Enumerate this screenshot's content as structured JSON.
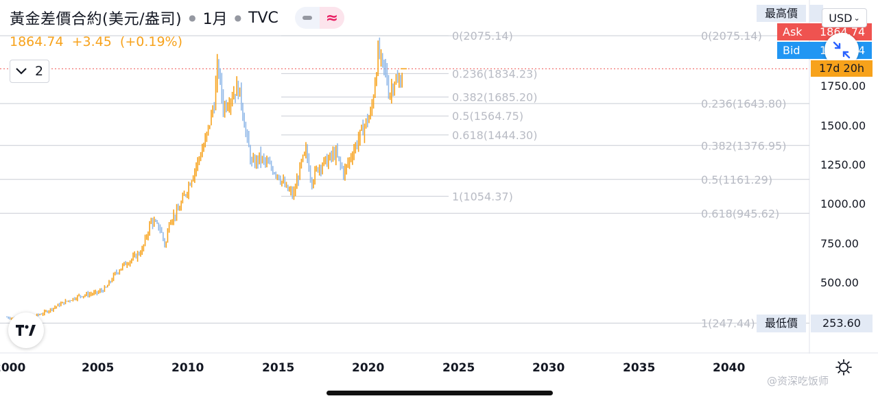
{
  "header": {
    "title": "黃金差價合約(美元/盎司)",
    "interval": "1月",
    "exchange": "TVC",
    "toggle_icon_a": "line-icon",
    "toggle_icon_b": "wave-icon"
  },
  "quote": {
    "last": "1864.74",
    "change": "+3.45",
    "change_pct": "(+0.19%)"
  },
  "collapse": {
    "count": "2"
  },
  "currency": {
    "label": "USD"
  },
  "price_tags": {
    "high_label": "最高價",
    "ask_label": "Ask",
    "ask_value": "1864.74",
    "bid_label": "Bid",
    "bid_value": "1864.14",
    "countdown": "17d 20h",
    "low_label": "最低價",
    "low_value": "253.60"
  },
  "colors": {
    "up": "#f7a21b",
    "down": "#90b8e8",
    "ask": "#ef5350",
    "bid": "#2196f3",
    "fib_line": "#c8ccd4",
    "fib_text": "#b8bbc4",
    "last_price_line": "#ef5350"
  },
  "watermark": "@资深吃饭师",
  "chart_data": {
    "type": "candlestick",
    "title": "黃金差價合約(美元/盎司)",
    "interval": "1M",
    "ylim": [
      247.44,
      2250
    ],
    "xlim": [
      2000,
      2042
    ],
    "y_ticks": [
      "500.00",
      "750.00",
      "1000.00",
      "1250.00",
      "1500.00",
      "1750.00"
    ],
    "x_ticks": [
      "2000",
      "2005",
      "2010",
      "2015",
      "2020",
      "2025",
      "2030",
      "2035",
      "2040"
    ],
    "last_price": 1864.74,
    "high": 2075.14,
    "low": 253.6,
    "fib_left": {
      "from": 1054.37,
      "to": 2075.14,
      "levels": [
        {
          "label": "0(2075.14)",
          "value": 2075.14
        },
        {
          "label": "0.236(1834.23)",
          "value": 1834.23
        },
        {
          "label": "0.382(1685.20)",
          "value": 1685.2
        },
        {
          "label": "0.5(1564.75)",
          "value": 1564.75
        },
        {
          "label": "0.618(1444.30)",
          "value": 1444.3
        },
        {
          "label": "1(1054.37)",
          "value": 1054.37
        }
      ]
    },
    "fib_right": {
      "from": 247.44,
      "to": 2075.14,
      "levels": [
        {
          "label": "0(2075.14)",
          "value": 2075.14
        },
        {
          "label": "0.236(1643.80)",
          "value": 1643.8
        },
        {
          "label": "0.382(1376.95)",
          "value": 1376.95
        },
        {
          "label": "0.5(1161.29)",
          "value": 1161.29
        },
        {
          "label": "0.618(945.62)",
          "value": 945.62
        },
        {
          "label": "1(247.44)",
          "value": 247.44
        }
      ]
    },
    "series_points": [
      [
        2000.0,
        285
      ],
      [
        2001.0,
        270
      ],
      [
        2002.0,
        310
      ],
      [
        2003.0,
        370
      ],
      [
        2004.0,
        420
      ],
      [
        2005.0,
        440
      ],
      [
        2005.5,
        470
      ],
      [
        2006.0,
        560
      ],
      [
        2006.5,
        620
      ],
      [
        2007.0,
        660
      ],
      [
        2007.5,
        710
      ],
      [
        2008.0,
        900
      ],
      [
        2008.5,
        850
      ],
      [
        2008.8,
        730
      ],
      [
        2009.0,
        900
      ],
      [
        2009.5,
        960
      ],
      [
        2010.0,
        1100
      ],
      [
        2010.5,
        1250
      ],
      [
        2011.0,
        1400
      ],
      [
        2011.5,
        1650
      ],
      [
        2011.7,
        1900
      ],
      [
        2012.0,
        1620
      ],
      [
        2012.5,
        1700
      ],
      [
        2012.8,
        1750
      ],
      [
        2013.0,
        1660
      ],
      [
        2013.3,
        1420
      ],
      [
        2013.6,
        1250
      ],
      [
        2014.0,
        1300
      ],
      [
        2014.5,
        1250
      ],
      [
        2015.0,
        1200
      ],
      [
        2015.5,
        1100
      ],
      [
        2015.9,
        1060
      ],
      [
        2016.3,
        1250
      ],
      [
        2016.6,
        1340
      ],
      [
        2016.9,
        1150
      ],
      [
        2017.3,
        1250
      ],
      [
        2017.8,
        1280
      ],
      [
        2018.2,
        1330
      ],
      [
        2018.7,
        1200
      ],
      [
        2019.0,
        1290
      ],
      [
        2019.5,
        1420
      ],
      [
        2019.9,
        1520
      ],
      [
        2020.2,
        1580
      ],
      [
        2020.6,
        1980
      ],
      [
        2020.8,
        1880
      ],
      [
        2021.0,
        1850
      ],
      [
        2021.2,
        1700
      ],
      [
        2021.5,
        1800
      ],
      [
        2021.7,
        1760
      ],
      [
        2021.9,
        1820
      ]
    ]
  }
}
